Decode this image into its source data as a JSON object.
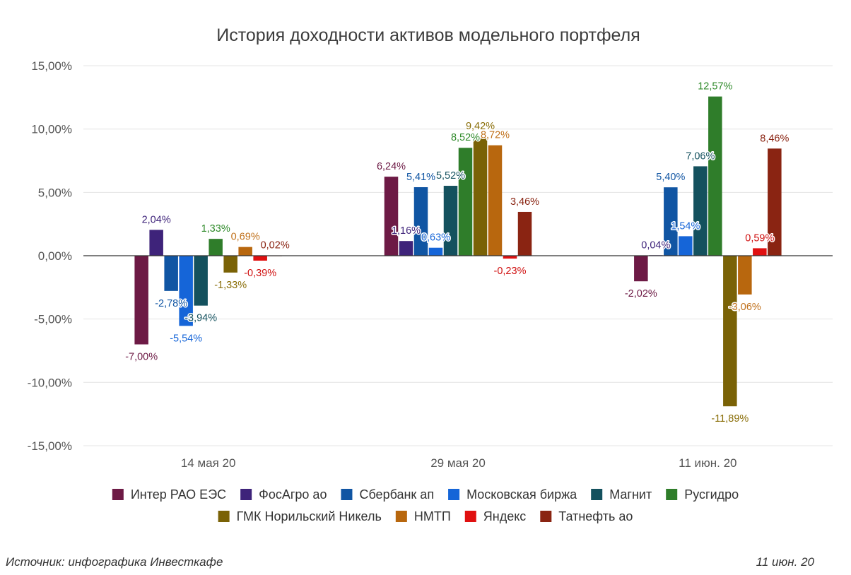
{
  "chart_data": {
    "type": "bar",
    "title": "История доходности активов модельного портфеля",
    "categories": [
      "14 мая 20",
      "29 мая 20",
      "11 июн. 20"
    ],
    "ylim": [
      -15,
      15
    ],
    "yticks": [
      15,
      10,
      5,
      0,
      -5,
      -10,
      -15
    ],
    "ytick_labels": [
      "15,00%",
      "10,00%",
      "5,00%",
      "0,00%",
      "-5,00%",
      "-10,00%",
      "-15,00%"
    ],
    "legend_position": "bottom",
    "grid": true,
    "series": [
      {
        "name": "Интер РАО ЕЭС",
        "color": "#6d1a45",
        "label_color": "#6d1a45",
        "values": [
          -7.0,
          6.24,
          -2.02
        ],
        "labels": [
          "-7,00%",
          "6,24%",
          "-2,02%"
        ]
      },
      {
        "name": "ФосАгро ао",
        "color": "#3e237a",
        "label_color": "#3e237a",
        "values": [
          2.04,
          1.16,
          0.04
        ],
        "labels": [
          "2,04%",
          "1,16%",
          "0,04%"
        ]
      },
      {
        "name": "Сбербанк ап",
        "color": "#1055a3",
        "label_color": "#1055a3",
        "values": [
          -2.78,
          5.41,
          5.4
        ],
        "labels": [
          "-2,78%",
          "5,41%",
          "5,40%"
        ]
      },
      {
        "name": "Московская биржа",
        "color": "#1565d8",
        "label_color": "#1565d8",
        "values": [
          -5.54,
          0.63,
          1.54
        ],
        "labels": [
          "-5,54%",
          "0,63%",
          "1,54%"
        ]
      },
      {
        "name": "Магнит",
        "color": "#14515e",
        "label_color": "#14515e",
        "values": [
          -3.94,
          5.52,
          7.06
        ],
        "labels": [
          "-3,94%",
          "5,52%",
          "7,06%"
        ]
      },
      {
        "name": "Русгидро",
        "color": "#2f7d2a",
        "label_color": "#2f8a2a",
        "values": [
          1.33,
          8.52,
          12.57
        ],
        "labels": [
          "1,33%",
          "8,52%",
          "12,57%"
        ]
      },
      {
        "name": "ГМК Норильский Никель",
        "color": "#7a6206",
        "label_color": "#8a6e08",
        "values": [
          -1.33,
          9.42,
          -11.89
        ],
        "labels": [
          "-1,33%",
          "9,42%",
          "-11,89%"
        ]
      },
      {
        "name": "НМТП",
        "color": "#b8670e",
        "label_color": "#c0701a",
        "values": [
          0.69,
          8.72,
          -3.06
        ],
        "labels": [
          "0,69%",
          "8,72%",
          "-3,06%"
        ]
      },
      {
        "name": "Яндекс",
        "color": "#e01010",
        "label_color": "#d01010",
        "values": [
          -0.39,
          -0.23,
          0.59
        ],
        "labels": [
          "-0,39%",
          "-0,23%",
          "0,59%"
        ]
      },
      {
        "name": "Татнефть ао",
        "color": "#8a2412",
        "label_color": "#8a2412",
        "values": [
          0.02,
          3.46,
          8.46
        ],
        "labels": [
          "0,02%",
          "3,46%",
          "8,46%"
        ]
      }
    ]
  },
  "footer": {
    "source": "Источник: инфографика Инвесткафе",
    "date": "11 июн. 20"
  }
}
